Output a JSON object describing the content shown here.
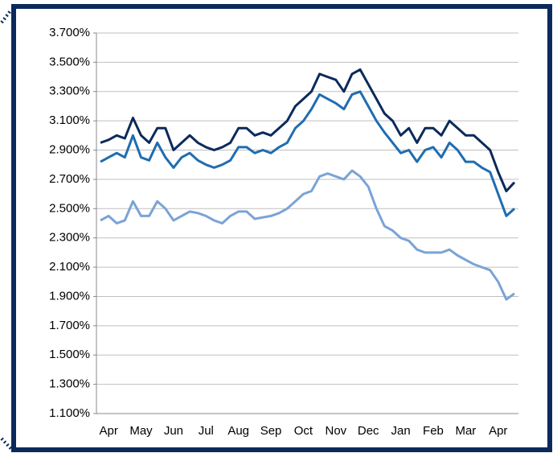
{
  "chart_data": {
    "type": "line",
    "categories": [
      null,
      "Apr",
      null,
      null,
      null,
      "May",
      null,
      null,
      null,
      "Jun",
      null,
      null,
      null,
      "Jul",
      null,
      null,
      null,
      "Aug",
      null,
      null,
      null,
      "Sep",
      null,
      null,
      null,
      "Oct",
      null,
      null,
      null,
      "Nov",
      null,
      null,
      null,
      "Dec",
      null,
      null,
      null,
      "Jan",
      null,
      null,
      null,
      "Feb",
      null,
      null,
      null,
      "Mar",
      null,
      null,
      null,
      "Apr",
      null,
      null
    ],
    "series": [
      {
        "color": "#0b2a5b",
        "values": [
          2.95,
          2.97,
          3.0,
          2.98,
          3.12,
          3.0,
          2.95,
          3.05,
          3.05,
          2.9,
          2.95,
          3.0,
          2.95,
          2.92,
          2.9,
          2.92,
          2.95,
          3.05,
          3.05,
          3.0,
          3.02,
          3.0,
          3.05,
          3.1,
          3.2,
          3.25,
          3.3,
          3.42,
          3.4,
          3.38,
          3.3,
          3.42,
          3.45,
          3.35,
          3.25,
          3.15,
          3.1,
          3.0,
          3.05,
          2.95,
          3.05,
          3.05,
          3.0,
          3.1,
          3.05,
          3.0,
          3.0,
          2.95,
          2.9,
          2.75,
          2.62,
          2.68
        ]
      },
      {
        "color": "#1f6db0",
        "values": [
          2.82,
          2.85,
          2.88,
          2.85,
          3.0,
          2.85,
          2.83,
          2.95,
          2.85,
          2.78,
          2.85,
          2.88,
          2.83,
          2.8,
          2.78,
          2.8,
          2.83,
          2.92,
          2.92,
          2.88,
          2.9,
          2.88,
          2.92,
          2.95,
          3.05,
          3.1,
          3.18,
          3.28,
          3.25,
          3.22,
          3.18,
          3.28,
          3.3,
          3.2,
          3.1,
          3.02,
          2.95,
          2.88,
          2.9,
          2.82,
          2.9,
          2.92,
          2.85,
          2.95,
          2.9,
          2.82,
          2.82,
          2.78,
          2.75,
          2.6,
          2.45,
          2.5
        ]
      },
      {
        "color": "#7aa3d6",
        "values": [
          2.42,
          2.45,
          2.4,
          2.42,
          2.55,
          2.45,
          2.45,
          2.55,
          2.5,
          2.42,
          2.45,
          2.48,
          2.47,
          2.45,
          2.42,
          2.4,
          2.45,
          2.48,
          2.48,
          2.43,
          2.44,
          2.45,
          2.47,
          2.5,
          2.55,
          2.6,
          2.62,
          2.72,
          2.74,
          2.72,
          2.7,
          2.76,
          2.72,
          2.65,
          2.5,
          2.38,
          2.35,
          2.3,
          2.28,
          2.22,
          2.2,
          2.2,
          2.2,
          2.22,
          2.18,
          2.15,
          2.12,
          2.1,
          2.08,
          2.0,
          1.88,
          1.92
        ]
      }
    ],
    "ylim": [
      1.1,
      3.7
    ],
    "yticks": [
      {
        "value": 1.1,
        "label": "1.100%"
      },
      {
        "value": 1.3,
        "label": "1.300%"
      },
      {
        "value": 1.5,
        "label": "1.500%"
      },
      {
        "value": 1.7,
        "label": "1.700%"
      },
      {
        "value": 1.9,
        "label": "1.900%"
      },
      {
        "value": 2.1,
        "label": "2.100%"
      },
      {
        "value": 2.3,
        "label": "2.300%"
      },
      {
        "value": 2.5,
        "label": "2.500%"
      },
      {
        "value": 2.7,
        "label": "2.700%"
      },
      {
        "value": 2.9,
        "label": "2.900%"
      },
      {
        "value": 3.1,
        "label": "3.100%"
      },
      {
        "value": 3.3,
        "label": "3.300%"
      },
      {
        "value": 3.5,
        "label": "3.500%"
      },
      {
        "value": 3.7,
        "label": "3.700%"
      }
    ],
    "grid": true
  }
}
